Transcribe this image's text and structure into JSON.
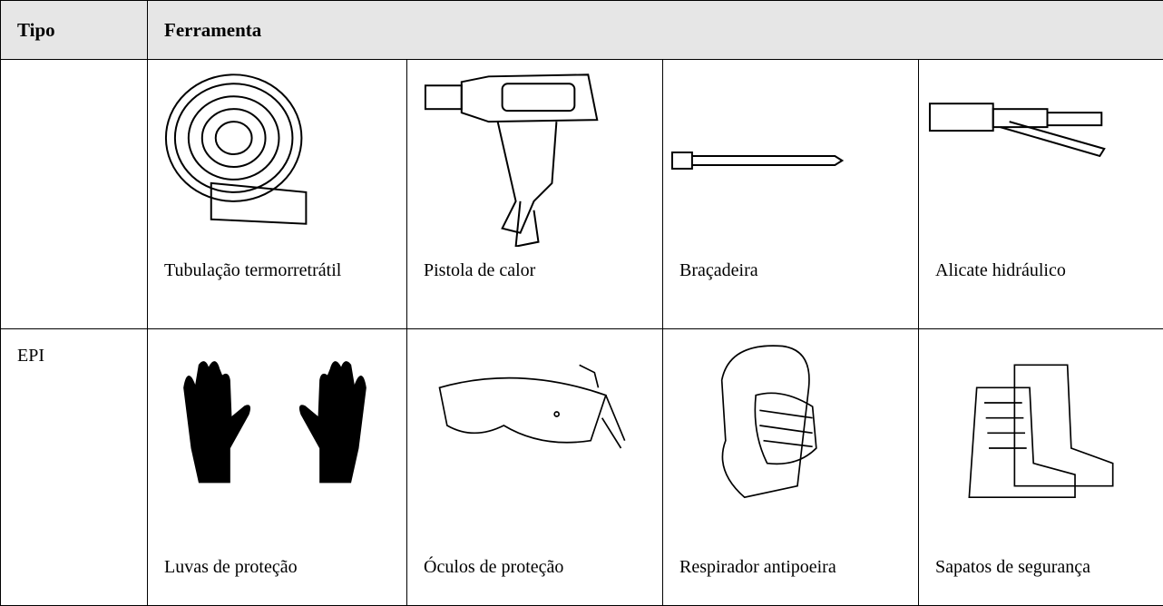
{
  "table": {
    "header": [
      "Tipo",
      "Ferramenta"
    ],
    "rows": [
      {
        "items": [
          "Tubulação termorretrátil",
          "Pistola de calor",
          "Braçadeira",
          "Alicate hidráulico"
        ]
      },
      {
        "type": "EPI",
        "items": [
          "Luvas de proteção",
          "Óculos de proteção",
          "Respirador antipoeira",
          "Sapatos de segurança"
        ]
      }
    ]
  }
}
